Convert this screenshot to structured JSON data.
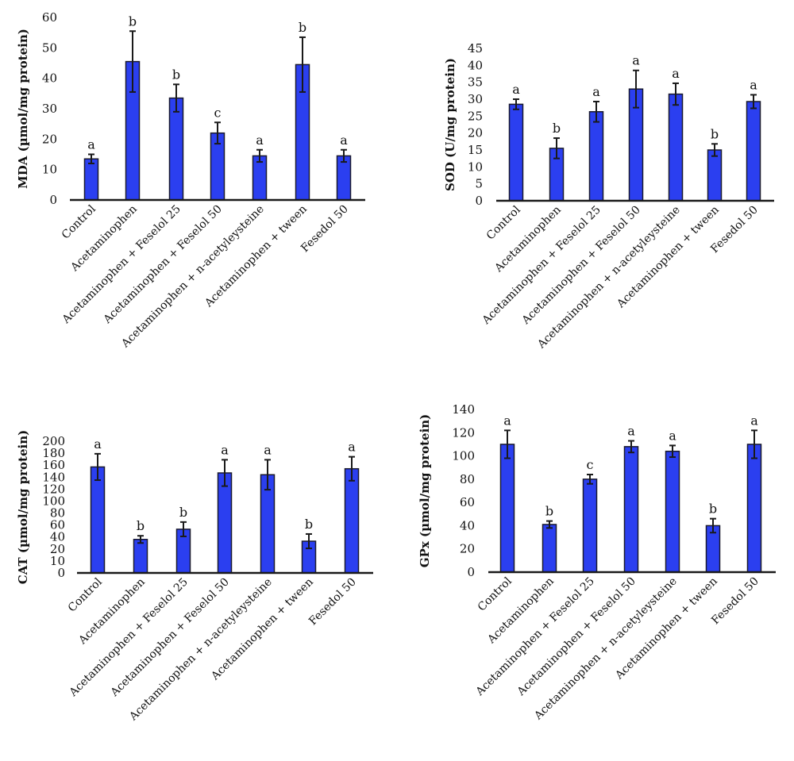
{
  "bar_color": "#2b3ff0",
  "chart_data": [
    {
      "type": "bar",
      "id": "mda",
      "title": "",
      "xlabel": "",
      "ylabel": "MDA (µmol/mg protein)",
      "ylim": [
        0,
        60
      ],
      "yticks": [
        "0",
        "10",
        "20",
        "30",
        "40",
        "50",
        "60"
      ],
      "categories": [
        "Control",
        "Acetaminophen",
        "Acetaminophen + Feselol 25",
        "Acetaminophen + Feselol 50",
        "Acetaminophen + n-acetyleysteine",
        "Acetaminophen + tween",
        "Fesedol 50"
      ],
      "values": [
        13.5,
        45.5,
        33.5,
        22,
        14.5,
        44.5,
        14.5
      ],
      "errors": [
        1.5,
        10,
        4.5,
        3.5,
        2,
        9,
        2
      ],
      "significance": [
        "a",
        "b",
        "b",
        "c",
        "a",
        "b",
        "a"
      ]
    },
    {
      "type": "bar",
      "id": "sod",
      "title": "",
      "xlabel": "",
      "ylabel": "SOD (U/mg protein)",
      "ylim": [
        0,
        45
      ],
      "yticks": [
        "0",
        "5",
        "10",
        "15",
        "20",
        "25",
        "30",
        "35",
        "40",
        "45"
      ],
      "categories": [
        "Control",
        "Acetaminophen",
        "Acetaminophen + Feselol 25",
        "Acetaminophen + Feselol 50",
        "Acetaminophen + n-acetyleysteine",
        "Acetaminophen + tween",
        "Fesedol 50"
      ],
      "values": [
        28.5,
        15.5,
        26.3,
        33,
        31.5,
        15,
        29.3
      ],
      "errors": [
        1.5,
        3,
        3,
        5.5,
        3.2,
        1.8,
        2
      ],
      "significance": [
        "a",
        "b",
        "a",
        "a",
        "a",
        "b",
        "a"
      ]
    },
    {
      "type": "bar",
      "id": "cat",
      "title": "",
      "xlabel": "",
      "ylabel": "CAT (µmol/mg protein)",
      "ylim": [
        0,
        200
      ],
      "yticks": [
        "0",
        "10",
        "20",
        "40",
        "60",
        "80",
        "100",
        "120",
        "140",
        "160",
        "180",
        "200"
      ],
      "categories": [
        "Control",
        "Acetaminophen",
        "Acetaminophen + Feselol 25",
        "Acetaminophen + Feselol 50",
        "Acetaminophen + n-acetyleysteine",
        "Acetaminophen + tween",
        "Fesedol 50"
      ],
      "values": [
        157,
        36,
        53,
        147,
        144,
        33,
        154
      ],
      "errors": [
        22,
        6,
        12,
        22,
        25,
        12,
        20
      ],
      "significance": [
        "a",
        "b",
        "b",
        "a",
        "a",
        "b",
        "a"
      ]
    },
    {
      "type": "bar",
      "id": "gpx",
      "title": "",
      "xlabel": "",
      "ylabel": "GPx (µmol/mg protein)",
      "ylim": [
        0,
        140
      ],
      "yticks": [
        "0",
        "20",
        "40",
        "60",
        "80",
        "100",
        "120",
        "140"
      ],
      "categories": [
        "Control",
        "Acetaminophen",
        "Acetaminophen + Feselol 25",
        "Acetaminophen + Feselol 50",
        "Acetaminophen + n-acetyleysteine",
        "Acetaminophen + tween",
        "Fesedol 50"
      ],
      "values": [
        110,
        41,
        80,
        108,
        104,
        40,
        110
      ],
      "errors": [
        12,
        3,
        4,
        5,
        5,
        6,
        12
      ],
      "significance": [
        "a",
        "b",
        "c",
        "a",
        "a",
        "b",
        "a"
      ]
    }
  ]
}
